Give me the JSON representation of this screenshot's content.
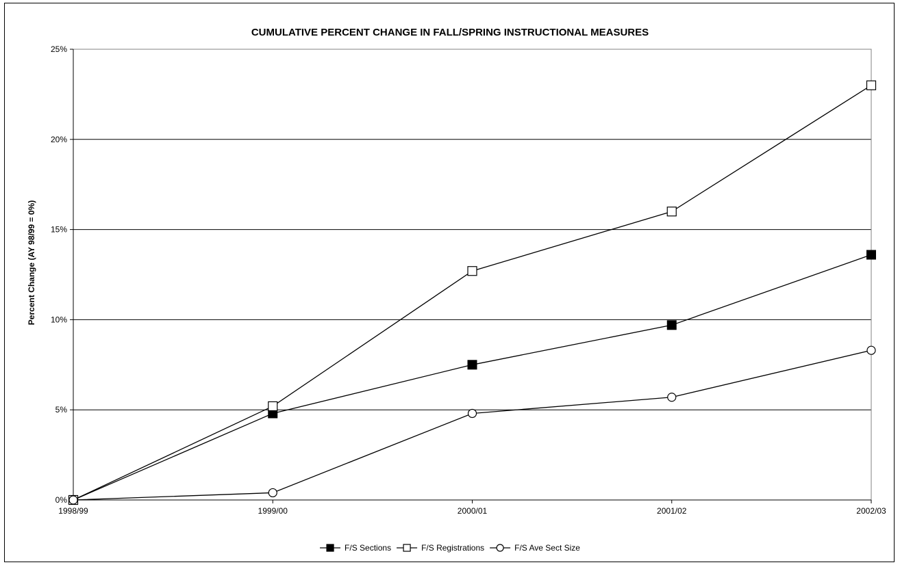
{
  "chart_data": {
    "type": "line",
    "title": "CUMULATIVE PERCENT CHANGE IN FALL/SPRING INSTRUCTIONAL MEASURES",
    "xlabel": "",
    "ylabel": "Percent Change (AY 98/99 = 0%)",
    "categories": [
      "1998/99",
      "1999/00",
      "2000/01",
      "2001/02",
      "2002/03"
    ],
    "ylim": [
      0,
      25
    ],
    "yticks": [
      0,
      5,
      10,
      15,
      20,
      25
    ],
    "ytick_labels": [
      "0%",
      "5%",
      "10%",
      "15%",
      "20%",
      "25%"
    ],
    "grid": true,
    "legend_position": "bottom",
    "series": [
      {
        "name": "F/S Sections",
        "marker": "filled-square",
        "values": [
          0,
          4.8,
          7.5,
          9.7,
          13.6
        ]
      },
      {
        "name": "F/S Registrations",
        "marker": "open-square",
        "values": [
          0,
          5.2,
          12.7,
          16.0,
          23.0
        ]
      },
      {
        "name": "F/S Ave Sect Size",
        "marker": "open-circle",
        "values": [
          0,
          0.4,
          4.8,
          5.7,
          8.3
        ]
      }
    ]
  }
}
